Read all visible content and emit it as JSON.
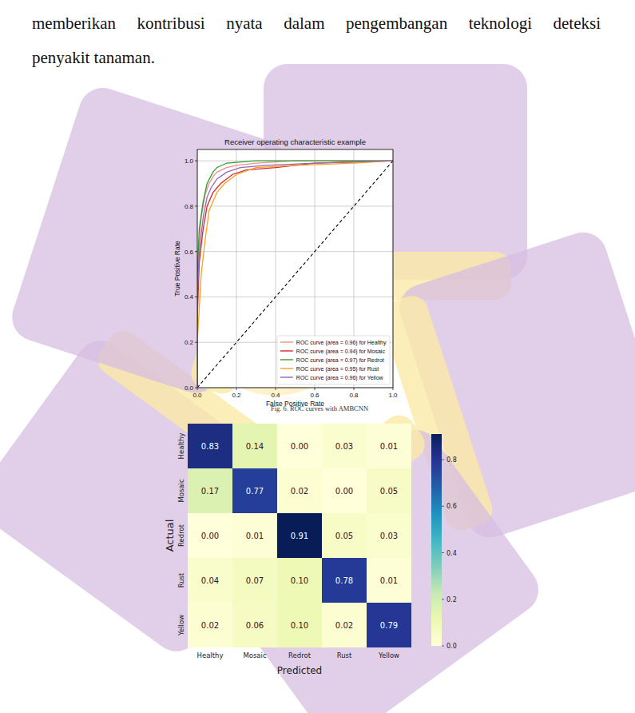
{
  "paragraph": {
    "lines": [
      "memberikan kontribusi nyata dalam pengembangan teknologi deteksi",
      "penyakit tanaman."
    ]
  },
  "chart_data": [
    {
      "type": "line",
      "title": "Receiver operating characteristic example",
      "x_label": "False Positive Rate",
      "y_label": "True Positive Rate",
      "caption": "Fig. 6. ROC curves with AMBCNN",
      "xlim": [
        0,
        1
      ],
      "ylim": [
        0,
        1.05
      ],
      "xticks": [
        {
          "value": 0,
          "label": "0.0"
        },
        0.2,
        0.4,
        0.6,
        0.8,
        {
          "value": 1,
          "label": "1.0"
        }
      ],
      "yticks": [
        {
          "value": 0,
          "label": "0.0"
        },
        0.2,
        0.4,
        0.6,
        0.8,
        {
          "value": 1,
          "label": "1.0"
        }
      ],
      "grid": true,
      "legend": "lower right",
      "diagonal": {
        "x": [
          0,
          1
        ],
        "values": [
          0,
          1
        ],
        "color": "#000000",
        "line_style": "dashed"
      },
      "series": [
        {
          "name": "ROC curve (area = 0.96) for Healthy",
          "color": "#f28e8e",
          "x": [
            0,
            0,
            0.01,
            0.02,
            0.04,
            0.06,
            0.08,
            0.1,
            0.15,
            0.2,
            0.3,
            0.5,
            1
          ],
          "values": [
            0,
            0.45,
            0.65,
            0.75,
            0.85,
            0.9,
            0.93,
            0.95,
            0.97,
            0.98,
            0.99,
            1,
            1
          ]
        },
        {
          "name": "ROC curve (area = 0.94) for Mosaic",
          "color": "#d62728",
          "x": [
            0,
            0,
            0.01,
            0.03,
            0.05,
            0.08,
            0.12,
            0.18,
            0.25,
            0.4,
            0.6,
            1
          ],
          "values": [
            0,
            0.3,
            0.55,
            0.7,
            0.8,
            0.86,
            0.9,
            0.94,
            0.96,
            0.97,
            0.99,
            1
          ]
        },
        {
          "name": "ROC curve (area = 0.97) for Redrot",
          "color": "#2ca02c",
          "x": [
            0,
            0,
            0.01,
            0.03,
            0.05,
            0.08,
            0.1,
            0.15,
            0.3,
            1
          ],
          "values": [
            0,
            0.5,
            0.7,
            0.82,
            0.9,
            0.95,
            0.97,
            0.99,
            1,
            1
          ]
        },
        {
          "name": "ROC curve (area = 0.95) for Rust",
          "color": "#ff9f1c",
          "x": [
            0,
            0,
            0.02,
            0.04,
            0.06,
            0.1,
            0.14,
            0.2,
            0.3,
            0.5,
            0.8,
            1
          ],
          "values": [
            0,
            0.2,
            0.5,
            0.65,
            0.78,
            0.86,
            0.9,
            0.94,
            0.97,
            0.98,
            0.99,
            1
          ]
        },
        {
          "name": "ROC curve (area = 0.96) for Yellow",
          "color": "#9467bd",
          "x": [
            0,
            0,
            0.01,
            0.03,
            0.05,
            0.07,
            0.1,
            0.15,
            0.22,
            0.35,
            0.6,
            1
          ],
          "values": [
            0,
            0.4,
            0.6,
            0.75,
            0.84,
            0.88,
            0.92,
            0.95,
            0.97,
            0.98,
            0.99,
            1
          ]
        }
      ]
    },
    {
      "type": "heatmap",
      "x_label": "Predicted",
      "y_label": "Actual",
      "categories": [
        "Healthy",
        "Mosaic",
        "Redrot",
        "Rust",
        "Yellow"
      ],
      "rows": [
        "Healthy",
        "Mosaic",
        "Redrot",
        "Rust",
        "Yellow"
      ],
      "cells": [
        [
          0.83,
          0.14,
          0,
          0.03,
          0.01
        ],
        [
          0.17,
          0.77,
          0.02,
          0,
          0.05
        ],
        [
          0,
          0.01,
          0.91,
          0.05,
          0.03
        ],
        [
          0.04,
          0.07,
          0.1,
          0.78,
          0.01
        ],
        [
          0.02,
          0.06,
          0.1,
          0.02,
          0.79
        ]
      ],
      "value_labels": [
        [
          "0.83",
          "0.14",
          "0.00",
          "0.03",
          "0.01"
        ],
        [
          "0.17",
          "0.77",
          "0.02",
          "0.00",
          "0.05"
        ],
        [
          "0.00",
          "0.01",
          "0.91",
          "0.05",
          "0.03"
        ],
        [
          "0.04",
          "0.07",
          "0.10",
          "0.78",
          "0.01"
        ],
        [
          "0.02",
          "0.06",
          "0.10",
          "0.02",
          "0.79"
        ]
      ],
      "data_labels": true,
      "colorbar": {
        "range": [
          0,
          0.91
        ],
        "ticks": [
          {
            "value": 0,
            "label": "0.0"
          },
          0.2,
          0.4,
          0.6,
          0.8
        ]
      }
    }
  ]
}
